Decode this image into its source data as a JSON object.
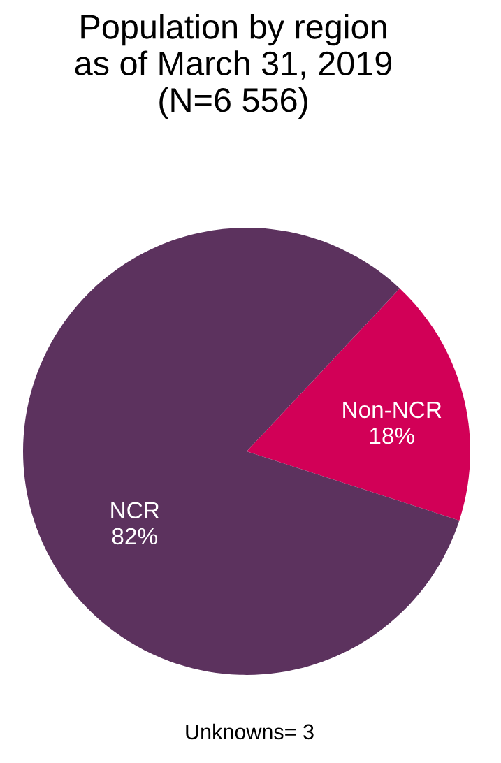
{
  "chart_data": {
    "type": "pie",
    "title": "Population by region\nas of March 31, 2019\n(N=6 556)",
    "categories": [
      "Non-NCR",
      "NCR"
    ],
    "values": [
      18,
      82
    ],
    "value_labels": [
      "18%",
      "82%"
    ],
    "colors": [
      "#d20057",
      "#5c325e"
    ],
    "annotations": [
      "Unknowns= 3"
    ]
  }
}
